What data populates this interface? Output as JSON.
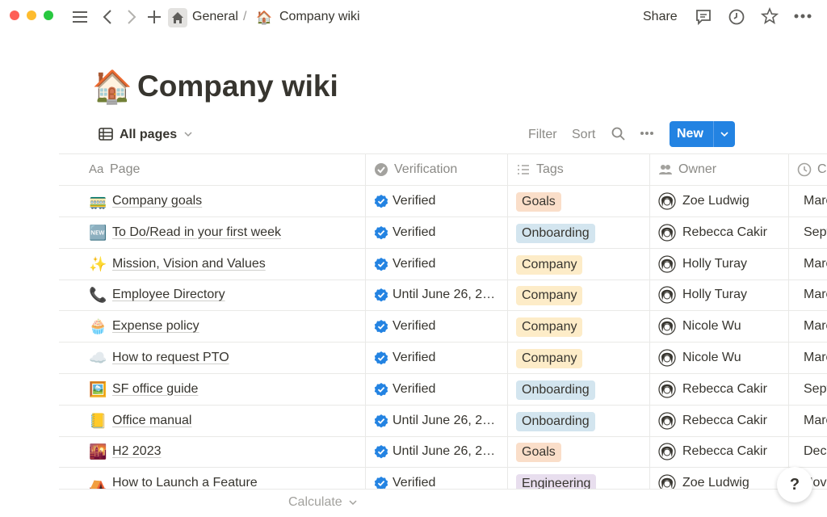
{
  "breadcrumb": {
    "workspace": "General",
    "separator": "/",
    "page_icon": "🏠",
    "page": "Company wiki"
  },
  "topbar": {
    "share": "Share"
  },
  "title": {
    "icon": "🏠",
    "text": "Company wiki"
  },
  "view": {
    "name": "All pages"
  },
  "toolbar": {
    "filter": "Filter",
    "sort": "Sort",
    "new": "New"
  },
  "table": {
    "page_icon_label": "Aa",
    "columns": [
      "Page",
      "Verification",
      "Tags",
      "Owner",
      "C"
    ],
    "tag_colors": {
      "Goals": "#fadec9",
      "Onboarding": "#d3e5ef",
      "Company": "#fdecc8",
      "Engineering": "#e8deee"
    },
    "rows": [
      {
        "icon": "🚃",
        "page": "Company goals",
        "verification": "Verified",
        "tag": "Goals",
        "owner": "Zoe Ludwig",
        "date": "Marc"
      },
      {
        "icon": "🆕",
        "page": "To Do/Read in your first week",
        "verification": "Verified",
        "tag": "Onboarding",
        "owner": "Rebecca Cakir",
        "date": "Sept"
      },
      {
        "icon": "✨",
        "page": "Mission, Vision and Values",
        "verification": "Verified",
        "tag": "Company",
        "owner": "Holly Turay",
        "date": "Marc"
      },
      {
        "icon": "📞",
        "page": "Employee Directory",
        "verification": "Until June 26, 2…",
        "tag": "Company",
        "owner": "Holly Turay",
        "date": "Marc"
      },
      {
        "icon": "🧁",
        "page": "Expense policy",
        "verification": "Verified",
        "tag": "Company",
        "owner": "Nicole Wu",
        "date": "Marc"
      },
      {
        "icon": "☁️",
        "page": "How to request PTO",
        "verification": "Verified",
        "tag": "Company",
        "owner": "Nicole Wu",
        "date": "Marc"
      },
      {
        "icon": "🖼️",
        "page": "SF office guide",
        "verification": "Verified",
        "tag": "Onboarding",
        "owner": "Rebecca Cakir",
        "date": "Sept"
      },
      {
        "icon": "📒",
        "page": "Office manual",
        "verification": "Until June 26, 2…",
        "tag": "Onboarding",
        "owner": "Rebecca Cakir",
        "date": "Marc"
      },
      {
        "icon": "🌇",
        "page": "H2 2023",
        "verification": "Until June 26, 2…",
        "tag": "Goals",
        "owner": "Rebecca Cakir",
        "date": "Dece"
      },
      {
        "icon": "⛺",
        "page": "How to Launch a Feature",
        "verification": "Verified",
        "tag": "Engineering",
        "owner": "Zoe Ludwig",
        "date": "Nove"
      }
    ]
  },
  "footer": {
    "calculate": "Calculate"
  },
  "help": "?"
}
